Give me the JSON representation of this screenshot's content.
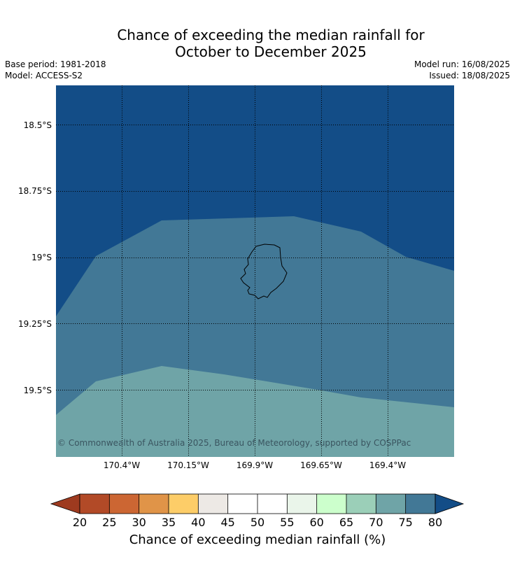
{
  "header": {
    "title_line1": "Chance of exceeding the median rainfall for",
    "title_line2": "October to December 2025",
    "base_period": "Base period: 1981-2018",
    "model": "Model: ACCESS-S2",
    "model_run": "Model run: 16/08/2025",
    "issued": "Issued: 18/08/2025"
  },
  "map": {
    "lat_labels": [
      "18.5°S",
      "18.75°S",
      "19°S",
      "19.25°S",
      "19.5°S"
    ],
    "lon_labels": [
      "170.4°W",
      "170.15°W",
      "169.9°W",
      "169.65°W",
      "169.4°W"
    ],
    "copyright": "© Commonwealth of Australia 2025, Bureau of Meteorology, supported by COSPPac",
    "zones": [
      {
        "name": "above-80",
        "color": "#134d87"
      },
      {
        "name": "75-80",
        "color": "#427896"
      },
      {
        "name": "70-75",
        "color": "#6fa4a7"
      }
    ]
  },
  "colorbar": {
    "title": "Chance of exceeding median rainfall (%)",
    "ticks": [
      "20",
      "25",
      "30",
      "35",
      "40",
      "45",
      "50",
      "55",
      "60",
      "65",
      "70",
      "75",
      "80"
    ],
    "colors": [
      "#9e3a1f",
      "#b24a27",
      "#cc6633",
      "#e09448",
      "#fdcd68",
      "#ede9e5",
      "#ffffff",
      "#ffffff",
      "#eaf5ea",
      "#ccffcc",
      "#9bcfb8",
      "#6fa4a7",
      "#427896",
      "#134d87"
    ]
  }
}
